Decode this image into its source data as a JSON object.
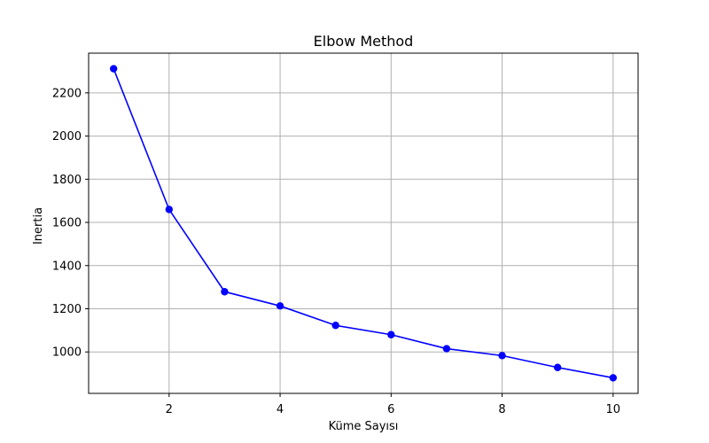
{
  "chart_data": {
    "type": "line",
    "title": "Elbow Method",
    "xlabel": "Küme Sayısı",
    "ylabel": "Inertia",
    "x": [
      1,
      2,
      3,
      4,
      5,
      6,
      7,
      8,
      9,
      10
    ],
    "series": [
      {
        "values": [
          2312,
          1660,
          1279,
          1213,
          1123,
          1080,
          1015,
          983,
          928,
          880
        ]
      }
    ],
    "xticks": [
      2,
      4,
      6,
      8,
      10
    ],
    "yticks": [
      1000,
      1200,
      1400,
      1600,
      1800,
      2000,
      2200
    ],
    "xlim": [
      0.55,
      10.45
    ],
    "ylim": [
      808,
      2384
    ],
    "grid": true,
    "line_color": "#0000ff",
    "marker": "circle",
    "grid_color": "#b0b0b0"
  }
}
